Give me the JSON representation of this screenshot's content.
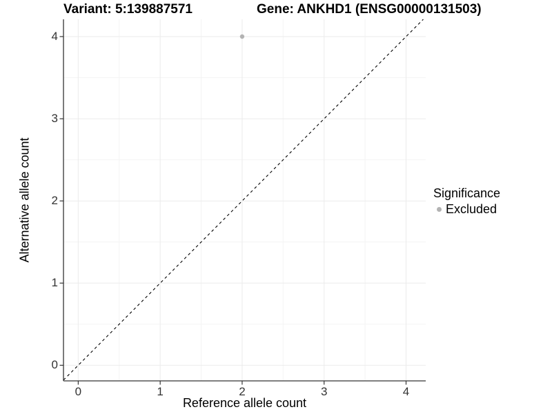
{
  "titles": {
    "variant": "Variant: 5:139887571",
    "gene": "Gene: ANKHD1 (ENSG00000131503)"
  },
  "chart_data": {
    "type": "scatter",
    "title_left": "Variant: 5:139887571",
    "title_right": "Gene: ANKHD1 (ENSG00000131503)",
    "xlabel": "Reference allele count",
    "ylabel": "Alternative allele count",
    "xlim": [
      -0.18,
      4.24
    ],
    "ylim": [
      -0.19,
      4.21
    ],
    "x_ticks": [
      0,
      1,
      2,
      3,
      4
    ],
    "x_minor_ticks": [
      0.5,
      1.5,
      2.5,
      3.5
    ],
    "y_ticks": [
      0,
      1,
      2,
      3,
      4
    ],
    "y_minor_ticks": [
      0.5,
      1.5,
      2.5,
      3.5
    ],
    "grid": "major+minor",
    "series": [
      {
        "name": "Excluded",
        "marker": "circle",
        "color": "#b3b3b3",
        "points": [
          {
            "x": 2,
            "y": 4
          }
        ]
      }
    ],
    "reference_line": {
      "kind": "identity",
      "slope": 1,
      "intercept": 0,
      "style": "dashed",
      "color": "#000000"
    },
    "legend": {
      "title": "Significance",
      "position": "right",
      "entries": [
        {
          "label": "Excluded",
          "marker": "circle",
          "marker_color": "#b3b3b3"
        }
      ]
    }
  },
  "style_colors": {
    "background": "#ffffff",
    "grid_major": "#ebebeb",
    "grid_minor": "#f4f4f4",
    "axis_line": "#333333",
    "tick_mark": "#333333",
    "tick_text": "#333333",
    "point": "#b3b3b3"
  }
}
